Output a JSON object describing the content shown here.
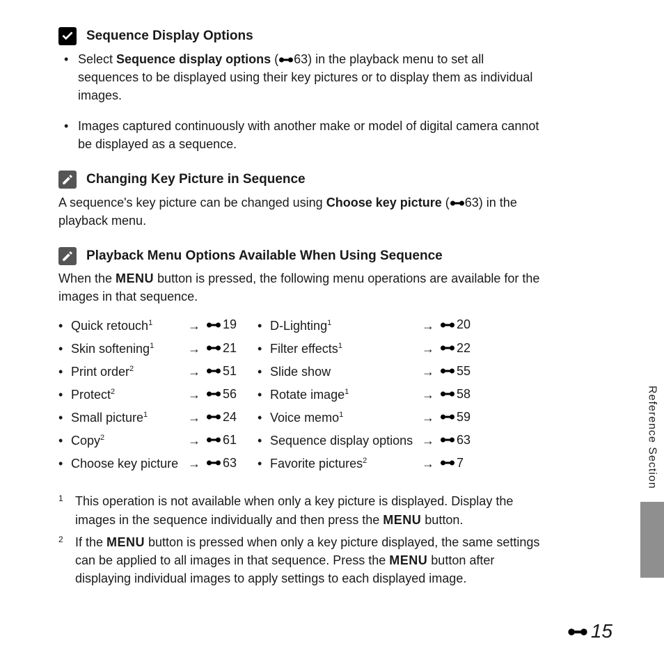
{
  "sections": {
    "seqDisplay": {
      "title": "Sequence Display Options",
      "bullets": [
        {
          "pre": "Select ",
          "bold": "Sequence display options",
          "post1": " (",
          "refnum": "63",
          "post2": ") in the playback menu to set all sequences to be displayed using their key pictures or to display them as individual images."
        },
        {
          "plain": "Images captured continuously with another make or model of digital camera cannot be displayed as a sequence."
        }
      ]
    },
    "changeKey": {
      "title": "Changing Key Picture in Sequence",
      "para": {
        "pre": "A sequence's key picture can be changed using ",
        "bold": "Choose key picture",
        "post1": " (",
        "refnum": "63",
        "post2": ") in the playback menu."
      }
    },
    "playback": {
      "title": "Playback Menu Options Available When Using Sequence",
      "para": {
        "pre": "When the ",
        "menu": "MENU",
        "post": " button is pressed, the following menu operations are available for the images in that sequence."
      },
      "leftOptions": [
        {
          "name": "Quick retouch",
          "sup": "1",
          "ref": "19"
        },
        {
          "name": "Skin softening",
          "sup": "1",
          "ref": "21"
        },
        {
          "name": "Print order",
          "sup": "2",
          "ref": "51"
        },
        {
          "name": "Protect",
          "sup": "2",
          "ref": "56"
        },
        {
          "name": "Small picture",
          "sup": "1",
          "ref": "24"
        },
        {
          "name": "Copy",
          "sup": "2",
          "ref": "61"
        },
        {
          "name": "Choose key picture",
          "sup": "",
          "ref": "63"
        }
      ],
      "rightOptions": [
        {
          "name": "D-Lighting",
          "sup": "1",
          "ref": "20"
        },
        {
          "name": "Filter effects",
          "sup": "1",
          "ref": "22"
        },
        {
          "name": "Slide show",
          "sup": "",
          "ref": "55"
        },
        {
          "name": "Rotate image",
          "sup": "1",
          "ref": "58"
        },
        {
          "name": "Voice memo",
          "sup": "1",
          "ref": "59"
        },
        {
          "name": "Sequence display options",
          "sup": "",
          "ref": "63"
        },
        {
          "name": "Favorite pictures",
          "sup": "2",
          "ref": "7"
        }
      ]
    }
  },
  "footnotes": [
    {
      "num": "1",
      "pre": "This operation is not available when only a key picture is displayed. Display the images in the sequence individually and then press the ",
      "menu": "MENU",
      "post": " button."
    },
    {
      "num": "2",
      "pre": "If the ",
      "menu": "MENU",
      "mid": " button is pressed when only a key picture displayed, the same settings can be applied to all images in that sequence. Press the ",
      "menu2": "MENU",
      "post": " button after displaying individual images to apply settings to each displayed image."
    }
  ],
  "sideTab": "Reference Section",
  "pageNum": "15",
  "arrowGlyph": "→"
}
